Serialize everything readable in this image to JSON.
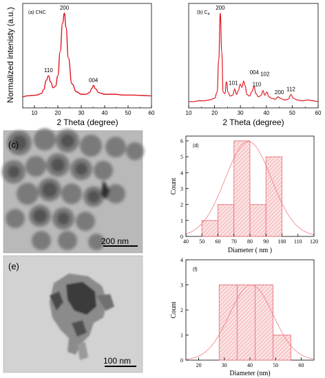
{
  "colors": {
    "curve": "#e0141e",
    "hist_fill": "#f3aaaa",
    "hist_line": "#e8737a",
    "fit": "#f07c84"
  },
  "chart_data": [
    {
      "id": "a",
      "type": "line",
      "panel_label": "(a) CNC",
      "ylabel": "Normalized intenisty (a.u.)",
      "xlabel": "2 Theta (degree)",
      "xlim": [
        5,
        60
      ],
      "xticks": [
        "10",
        "20",
        "30",
        "40",
        "50",
        "60"
      ],
      "x": [
        5,
        7,
        9,
        11,
        13,
        14,
        15,
        16,
        17,
        18,
        19,
        20,
        21,
        22,
        22.8,
        23.5,
        24.5,
        26,
        28,
        30,
        32,
        33.5,
        34.5,
        35.2,
        36,
        37.5,
        40,
        44,
        48,
        52,
        56,
        60
      ],
      "y": [
        0.14,
        0.15,
        0.155,
        0.16,
        0.18,
        0.23,
        0.34,
        0.4,
        0.32,
        0.25,
        0.27,
        0.4,
        0.7,
        1.05,
        1.18,
        1.0,
        0.62,
        0.3,
        0.2,
        0.17,
        0.17,
        0.19,
        0.24,
        0.28,
        0.24,
        0.19,
        0.17,
        0.17,
        0.16,
        0.16,
        0.155,
        0.15
      ],
      "peaks": [
        {
          "label": "110",
          "x": 16
        },
        {
          "label": "200",
          "x": 22.8
        },
        {
          "label": "004",
          "x": 35.2
        }
      ]
    },
    {
      "id": "b",
      "type": "line",
      "panel_label": "(b) C",
      "panel_label_sub": "4",
      "xlabel": "2 Theta (degree)",
      "xlim": [
        10,
        60
      ],
      "xticks": [
        "10",
        "20",
        "30",
        "40",
        "50",
        "60"
      ],
      "x": [
        10,
        12,
        14,
        16,
        18,
        20,
        21,
        21.6,
        22.2,
        22.8,
        23.3,
        24,
        24.6,
        25.2,
        26,
        27,
        27.8,
        28.5,
        29.2,
        29.9,
        30.6,
        31.2,
        31.8,
        32.5,
        33.5,
        34.5,
        35.2,
        36,
        37,
        38,
        38.7,
        39.4,
        40.2,
        41,
        42,
        43.5,
        44.5,
        45.5,
        47,
        48.5,
        49.5,
        50.5,
        52,
        54,
        56,
        58,
        60
      ],
      "y": [
        0.08,
        0.08,
        0.09,
        0.09,
        0.1,
        0.12,
        0.2,
        0.6,
        1.2,
        0.7,
        0.2,
        0.18,
        0.33,
        0.2,
        0.15,
        0.16,
        0.24,
        0.17,
        0.22,
        0.3,
        0.26,
        0.34,
        0.28,
        0.17,
        0.15,
        0.21,
        0.27,
        0.18,
        0.14,
        0.16,
        0.22,
        0.16,
        0.2,
        0.14,
        0.12,
        0.11,
        0.14,
        0.12,
        0.1,
        0.11,
        0.17,
        0.12,
        0.1,
        0.09,
        0.1,
        0.09,
        0.08
      ],
      "peaks": [
        {
          "label": "200",
          "x": 22.2
        },
        {
          "label": "101",
          "x": 27.8
        },
        {
          "label": "004",
          "x": 34.8
        },
        {
          "label": "102",
          "x": 38.4
        },
        {
          "label": "110",
          "x": 35.8
        },
        {
          "label": "200",
          "x": 45
        },
        {
          "label": "112",
          "x": 49.5
        }
      ]
    },
    {
      "id": "d",
      "type": "bar",
      "panel_label": "(d)",
      "ylabel": "Count",
      "xlabel": "Diameter ( nm )",
      "xlim": [
        40,
        120
      ],
      "ylim": [
        0,
        6.3
      ],
      "xticks": [
        "40",
        "50",
        "60",
        "70",
        "80",
        "90",
        "100",
        "110",
        "120"
      ],
      "yticks": [
        "0",
        "1",
        "2",
        "3",
        "4",
        "5",
        "6"
      ],
      "bins": [
        [
          50,
          60
        ],
        [
          60,
          70
        ],
        [
          70,
          80
        ],
        [
          80,
          90
        ],
        [
          90,
          100
        ]
      ],
      "values": [
        1,
        2,
        6,
        2,
        5
      ],
      "fit": {
        "mean": 79,
        "sd": 14.5,
        "peak": 5.95
      }
    },
    {
      "id": "f",
      "type": "bar",
      "panel_label": "(f)",
      "ylabel": "Count",
      "xlabel": "Diameter (nm)",
      "xlim": [
        15,
        65
      ],
      "ylim": [
        0,
        4
      ],
      "xticks": [
        "20",
        "30",
        "40",
        "50",
        "60"
      ],
      "yticks": [
        "0",
        "1",
        "2",
        "3",
        "4"
      ],
      "bins": [
        [
          28,
          35
        ],
        [
          35,
          42
        ],
        [
          42,
          49
        ],
        [
          49,
          56
        ]
      ],
      "values": [
        3,
        3,
        3,
        1
      ],
      "fit": {
        "mean": 40.5,
        "sd": 8.5,
        "peak": 3.0
      }
    }
  ],
  "images": [
    {
      "label": "(c)",
      "scale_text": "200 nm"
    },
    {
      "label": "(e)",
      "scale_text": "100 nm"
    }
  ]
}
